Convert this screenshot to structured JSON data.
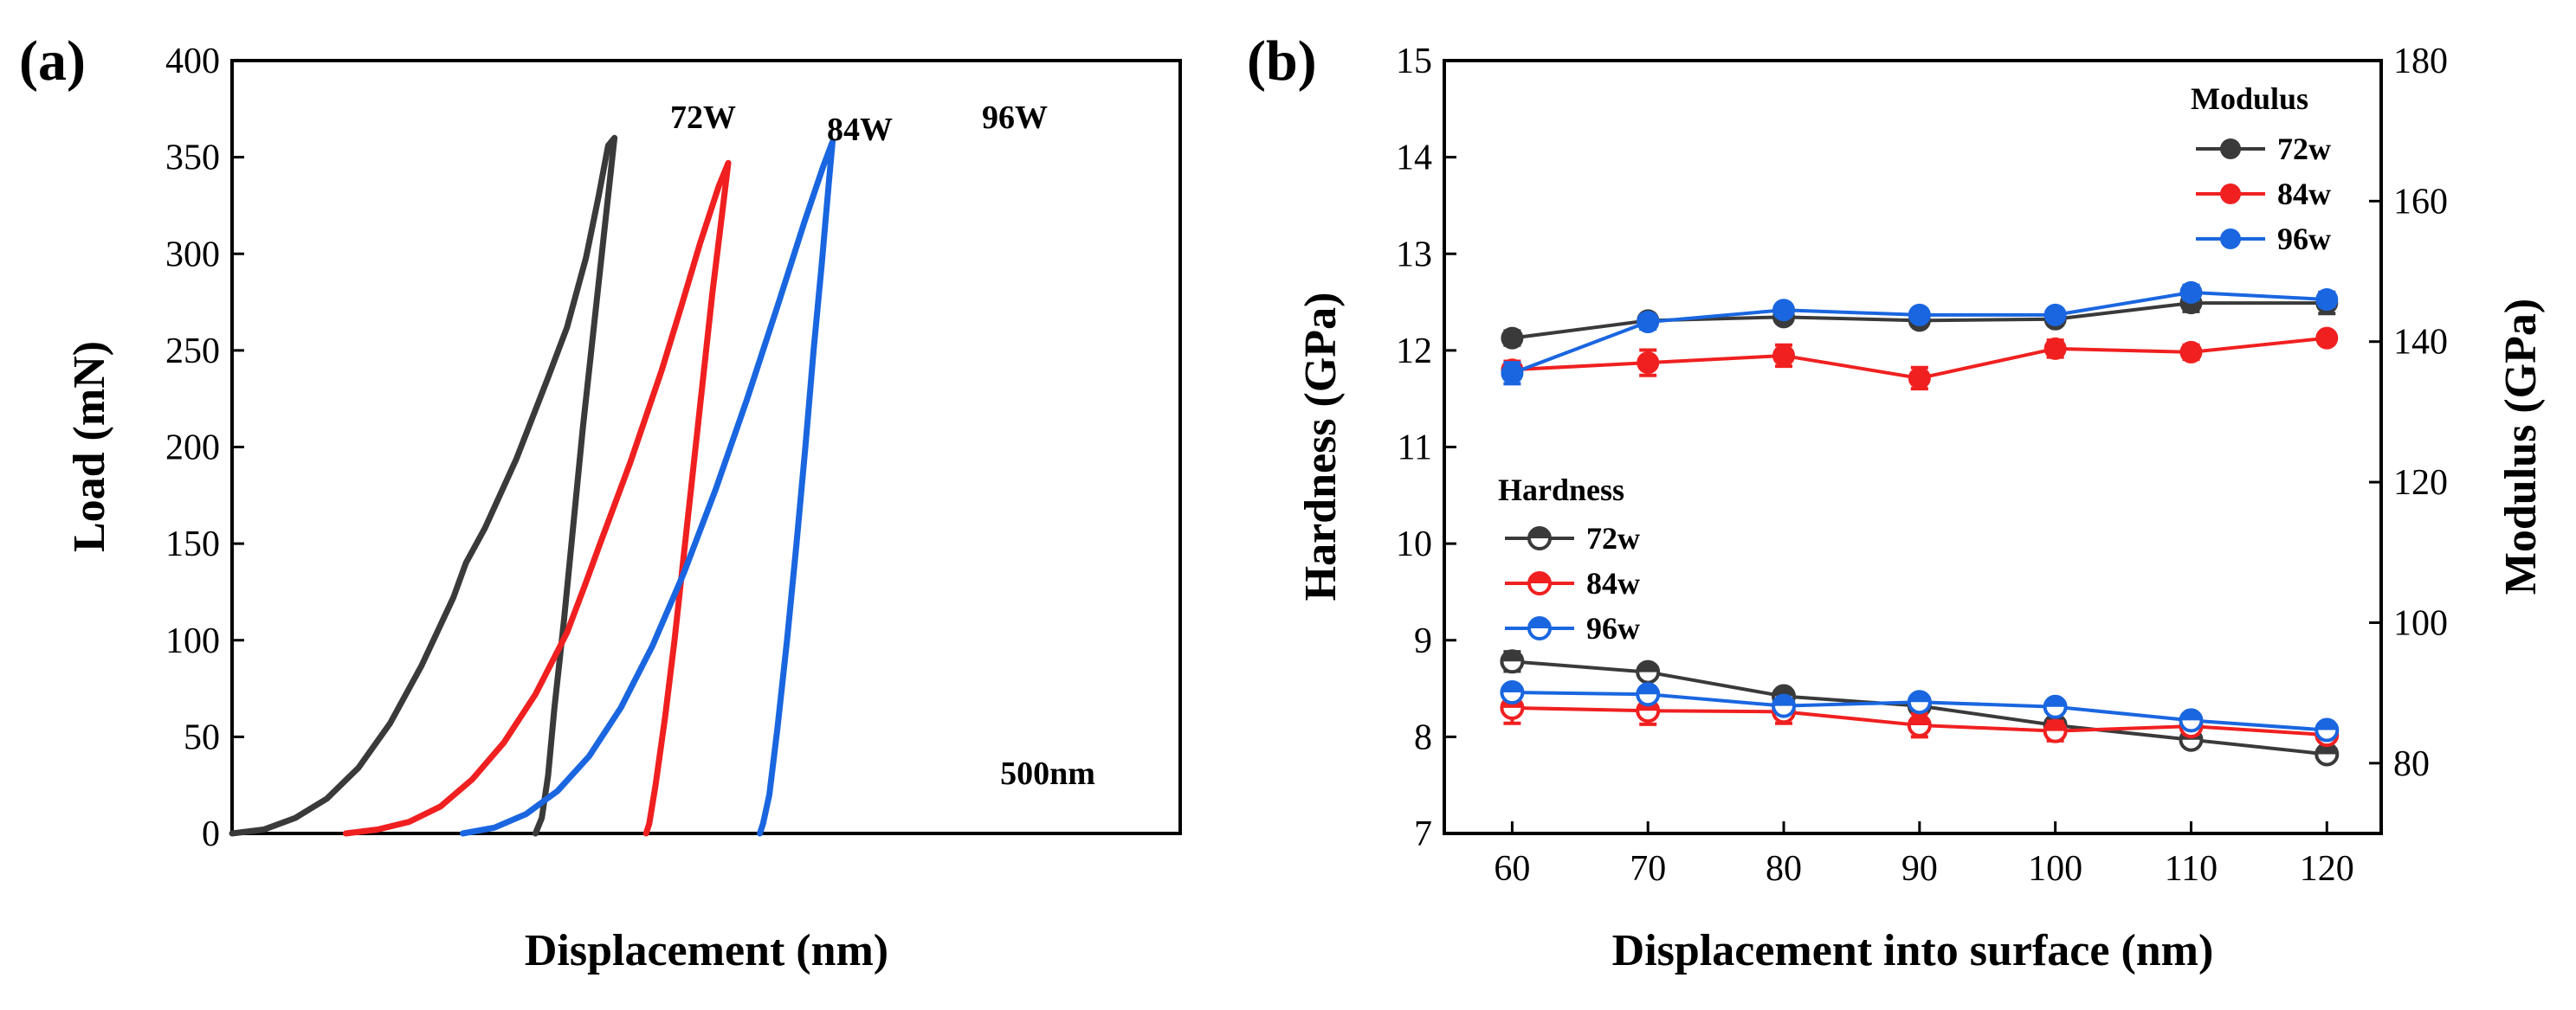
{
  "colors": {
    "72": "#3a3a3a",
    "84": "#f02020",
    "96": "#1a66e0",
    "axis": "#000000"
  },
  "chart_data": [
    {
      "id": "a",
      "type": "line",
      "panel_label": "(a)",
      "title": "",
      "xlabel": "Displacement (nm)",
      "ylabel": "Load (mN)",
      "ylim": [
        0,
        400
      ],
      "yticks": [
        "0",
        "50",
        "100",
        "150",
        "200",
        "250",
        "300",
        "350",
        "400"
      ],
      "scale_annotation": "500nm",
      "scale_length_nm": 500,
      "xlim": [
        0,
        1500
      ],
      "series": [
        {
          "name": "72W",
          "color_key": "72",
          "loading": [
            [
              0,
              0
            ],
            [
              50,
              2
            ],
            [
              100,
              8
            ],
            [
              150,
              18
            ],
            [
              200,
              34
            ],
            [
              250,
              57
            ],
            [
              300,
              87
            ],
            [
              350,
              122
            ],
            [
              370,
              140
            ],
            [
              400,
              158
            ],
            [
              450,
              194
            ],
            [
              500,
              236
            ],
            [
              530,
              262
            ],
            [
              560,
              298
            ],
            [
              580,
              330
            ],
            [
              595,
              356
            ],
            [
              605,
              360
            ]
          ],
          "unloading": [
            [
              605,
              360
            ],
            [
              600,
              345
            ],
            [
              585,
              300
            ],
            [
              570,
              255
            ],
            [
              555,
              210
            ],
            [
              540,
              160
            ],
            [
              525,
              110
            ],
            [
              510,
              65
            ],
            [
              500,
              30
            ],
            [
              490,
              8
            ],
            [
              480,
              0
            ]
          ]
        },
        {
          "name": "84W",
          "color_key": "84",
          "loading": [
            [
              0,
              0
            ],
            [
              50,
              2
            ],
            [
              100,
              6
            ],
            [
              150,
              14
            ],
            [
              200,
              28
            ],
            [
              250,
              47
            ],
            [
              300,
              72
            ],
            [
              350,
              104
            ],
            [
              380,
              130
            ],
            [
              400,
              148
            ],
            [
              450,
              192
            ],
            [
              500,
              240
            ],
            [
              530,
              272
            ],
            [
              560,
              305
            ],
            [
              590,
              335
            ],
            [
              605,
              347
            ]
          ],
          "unloading": [
            [
              605,
              347
            ],
            [
              595,
              320
            ],
            [
              580,
              280
            ],
            [
              565,
              235
            ],
            [
              550,
              190
            ],
            [
              535,
              145
            ],
            [
              520,
              100
            ],
            [
              505,
              60
            ],
            [
              490,
              25
            ],
            [
              480,
              5
            ],
            [
              475,
              0
            ]
          ]
        },
        {
          "name": "96W",
          "color_key": "96",
          "loading": [
            [
              0,
              0
            ],
            [
              50,
              3
            ],
            [
              100,
              10
            ],
            [
              150,
              22
            ],
            [
              200,
              40
            ],
            [
              250,
              65
            ],
            [
              300,
              97
            ],
            [
              350,
              135
            ],
            [
              400,
              178
            ],
            [
              450,
              225
            ],
            [
              500,
              275
            ],
            [
              540,
              316
            ],
            [
              570,
              345
            ],
            [
              585,
              358
            ]
          ],
          "unloading": [
            [
              585,
              358
            ],
            [
              580,
              340
            ],
            [
              568,
              295
            ],
            [
              555,
              250
            ],
            [
              542,
              200
            ],
            [
              528,
              150
            ],
            [
              513,
              100
            ],
            [
              498,
              55
            ],
            [
              485,
              20
            ],
            [
              475,
              5
            ],
            [
              470,
              0
            ]
          ]
        }
      ]
    },
    {
      "id": "b",
      "type": "line",
      "panel_label": "(b)",
      "xlabel": "Displacement into surface (nm)",
      "ylabel_left": "Hardness (GPa)",
      "ylabel_right": "Modulus (GPa)",
      "xlim": [
        55,
        124
      ],
      "ylim_left": [
        7,
        15
      ],
      "ylim_right": [
        70,
        180
      ],
      "xticks": [
        "60",
        "70",
        "80",
        "90",
        "100",
        "110",
        "120"
      ],
      "yticks_left": [
        "7",
        "8",
        "9",
        "10",
        "11",
        "12",
        "13",
        "14",
        "15"
      ],
      "yticks_right": [
        "80",
        "100",
        "120",
        "140",
        "160",
        "180"
      ],
      "legend_modulus": {
        "title": "Modulus",
        "entries": [
          "72w",
          "84w",
          "96w"
        ]
      },
      "legend_hardness": {
        "title": "Hardness",
        "entries": [
          "72w",
          "84w",
          "96w"
        ]
      },
      "modulus_series": [
        {
          "name": "72w",
          "color_key": "72",
          "x": [
            60,
            70,
            80,
            90,
            100,
            110,
            120
          ],
          "y": [
            140.5,
            143.0,
            143.5,
            143.0,
            143.2,
            145.5,
            145.5
          ],
          "err": [
            1.0,
            0.8,
            0.8,
            0.8,
            0.8,
            1.2,
            1.5
          ]
        },
        {
          "name": "84w",
          "color_key": "84",
          "x": [
            60,
            70,
            80,
            90,
            100,
            110,
            120
          ],
          "y": [
            136.0,
            137.0,
            138.0,
            134.8,
            139.0,
            138.5,
            140.5
          ],
          "err": [
            1.2,
            1.8,
            1.5,
            1.5,
            1.2,
            1.0,
            0.8
          ]
        },
        {
          "name": "96w",
          "color_key": "96",
          "x": [
            60,
            70,
            80,
            90,
            100,
            110,
            120
          ],
          "y": [
            135.5,
            142.8,
            144.5,
            143.8,
            143.8,
            147.0,
            146.0
          ],
          "err": [
            1.5,
            1.0,
            0.8,
            0.8,
            0.8,
            1.0,
            1.0
          ]
        }
      ],
      "hardness_series": [
        {
          "name": "72w",
          "color_key": "72",
          "x": [
            60,
            70,
            80,
            90,
            100,
            110,
            120
          ],
          "y": [
            8.78,
            8.67,
            8.42,
            8.32,
            8.12,
            7.97,
            7.82
          ],
          "err": [
            0.1,
            0.06,
            0.05,
            0.05,
            0.05,
            0.05,
            0.04
          ]
        },
        {
          "name": "84w",
          "color_key": "84",
          "x": [
            60,
            70,
            80,
            90,
            100,
            110,
            120
          ],
          "y": [
            8.3,
            8.27,
            8.26,
            8.12,
            8.06,
            8.11,
            8.02
          ],
          "err": [
            0.16,
            0.14,
            0.12,
            0.12,
            0.1,
            0.08,
            0.06
          ]
        },
        {
          "name": "96w",
          "color_key": "96",
          "x": [
            60,
            70,
            80,
            90,
            100,
            110,
            120
          ],
          "y": [
            8.46,
            8.44,
            8.32,
            8.36,
            8.31,
            8.17,
            8.07
          ],
          "err": [
            0.05,
            0.05,
            0.05,
            0.05,
            0.05,
            0.05,
            0.05
          ]
        }
      ]
    }
  ]
}
